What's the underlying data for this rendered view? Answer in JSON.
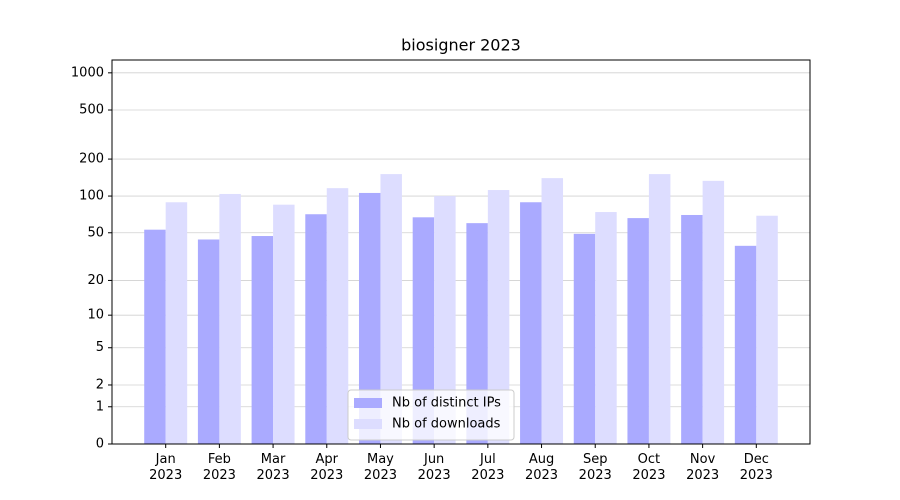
{
  "chart_data": {
    "type": "bar",
    "title": "biosigner 2023",
    "categories": [
      "Jan 2023",
      "Feb 2023",
      "Mar 2023",
      "Apr 2023",
      "May 2023",
      "Jun 2023",
      "Jul 2023",
      "Aug 2023",
      "Sep 2023",
      "Oct 2023",
      "Nov 2023",
      "Dec 2023"
    ],
    "series": [
      {
        "name": "Nb of distinct IPs",
        "color": "#aaaaff",
        "values": [
          53,
          44,
          47,
          71,
          106,
          67,
          60,
          89,
          49,
          66,
          70,
          39
        ]
      },
      {
        "name": "Nb of downloads",
        "color": "#ddddff",
        "values": [
          89,
          104,
          85,
          116,
          151,
          100,
          112,
          140,
          74,
          151,
          133,
          69
        ]
      }
    ],
    "y_scale": "symlog",
    "ylim": [
      0,
      1270
    ],
    "yticks": [
      0,
      1,
      2,
      5,
      10,
      20,
      50,
      100,
      200,
      500,
      1000
    ],
    "grid": true,
    "legend_position": "lower center"
  }
}
